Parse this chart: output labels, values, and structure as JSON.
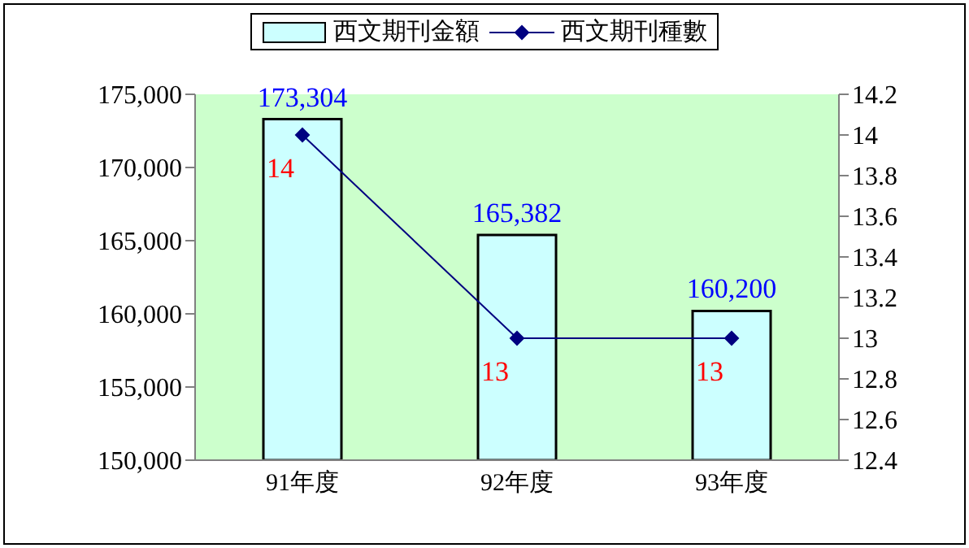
{
  "chart_data": {
    "type": "bar",
    "categories": [
      "91年度",
      "92年度",
      "93年度"
    ],
    "series": [
      {
        "name": "西文期刊金額",
        "color": "#ccffff",
        "values": [
          173304,
          165382,
          160200
        ],
        "value_labels": [
          "173,304",
          "165,382",
          "160,200"
        ]
      },
      {
        "name": "西文期刊種數",
        "type": "line",
        "axis": "y2",
        "color": "#000080",
        "values": [
          14,
          13,
          13
        ],
        "value_labels": [
          "14",
          "13",
          "13"
        ]
      }
    ],
    "ylim": [
      150000,
      175000
    ],
    "yticks": [
      {
        "value": 150000,
        "label": "150,000"
      },
      {
        "value": 155000,
        "label": "155,000"
      },
      {
        "value": 160000,
        "label": "160,000"
      },
      {
        "value": 165000,
        "label": "165,000"
      },
      {
        "value": 170000,
        "label": "170,000"
      },
      {
        "value": 175000,
        "label": "175,000"
      }
    ],
    "y2lim": [
      12.4,
      14.2
    ],
    "y2ticks": [
      12.4,
      12.6,
      12.8,
      13,
      13.2,
      13.4,
      13.6,
      13.8,
      14,
      14.2
    ],
    "legend": "top",
    "grid": false,
    "marker": "diamond",
    "line_style": "solid"
  }
}
